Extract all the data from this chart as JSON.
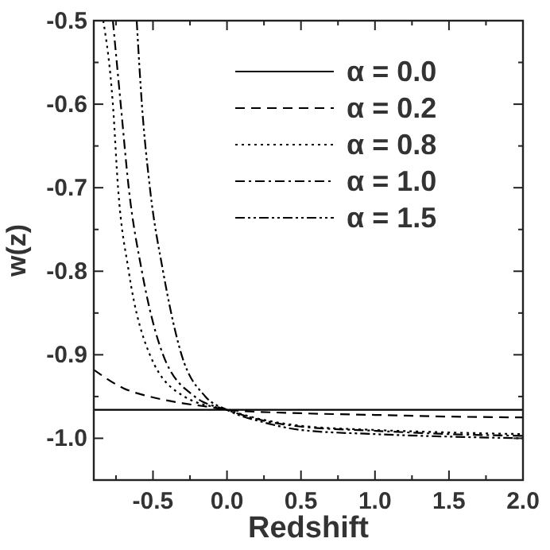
{
  "chart_data": {
    "type": "line",
    "xlabel": "Redshift",
    "ylabel": "w(z)",
    "xlim": [
      -0.9,
      2.0
    ],
    "ylim": [
      -1.05,
      -0.5
    ],
    "xticks": [
      {
        "value": -0.75,
        "label": null
      },
      -0.5,
      {
        "value": -0.25,
        "label": null
      },
      {
        "value": 0,
        "label": "0.0"
      },
      {
        "value": 0.25,
        "label": null
      },
      0.5,
      {
        "value": 0.75,
        "label": null
      },
      {
        "value": 1,
        "label": "1.0"
      },
      {
        "value": 1.25,
        "label": null
      },
      1.5,
      {
        "value": 1.75,
        "label": null
      },
      {
        "value": 2,
        "label": "2.0"
      }
    ],
    "yticks": [
      {
        "value": -1.05,
        "label": null
      },
      {
        "value": -1,
        "label": "-1.0"
      },
      {
        "value": -0.95,
        "label": null
      },
      -0.9,
      {
        "value": -0.85,
        "label": null
      },
      -0.8,
      {
        "value": -0.75,
        "label": null
      },
      -0.7,
      {
        "value": -0.65,
        "label": null
      },
      -0.6,
      {
        "value": -0.55,
        "label": null
      },
      -0.5
    ],
    "legend": "top right",
    "grid": false,
    "series": [
      {
        "name": "α = 0.0",
        "color": "#000000",
        "line_style": "solid",
        "x": [
          -0.9,
          0,
          2.0
        ],
        "values": [
          -0.966,
          -0.966,
          -0.966
        ]
      },
      {
        "name": "α = 0.2",
        "color": "#000000",
        "line_style": "dashed",
        "x": [
          -0.9,
          -0.7,
          -0.5,
          -0.3,
          -0.1,
          0,
          0.5,
          1.0,
          1.5,
          2.0
        ],
        "values": [
          -0.918,
          -0.94,
          -0.951,
          -0.958,
          -0.963,
          -0.966,
          -0.97,
          -0.972,
          -0.974,
          -0.975
        ]
      },
      {
        "name": "α = 0.8",
        "color": "#000000",
        "line_style": "dotted",
        "x": [
          -0.836,
          -0.771,
          -0.736,
          -0.664,
          -0.521,
          -0.289,
          0,
          0.25,
          0.5,
          1.0,
          1.5,
          2.0
        ],
        "values": [
          -0.5,
          -0.6,
          -0.7,
          -0.8,
          -0.9,
          -0.95,
          -0.966,
          -0.978,
          -0.985,
          -0.99,
          -0.993,
          -0.995
        ]
      },
      {
        "name": "α = 1.0",
        "color": "#000000",
        "line_style": "dashdot",
        "x": [
          -0.771,
          -0.718,
          -0.664,
          -0.575,
          -0.432,
          -0.218,
          0,
          0.25,
          0.5,
          1.0,
          1.5,
          2.0
        ],
        "values": [
          -0.5,
          -0.6,
          -0.7,
          -0.8,
          -0.9,
          -0.95,
          -0.966,
          -0.979,
          -0.986,
          -0.991,
          -0.995,
          -0.997
        ]
      },
      {
        "name": "α = 1.5",
        "color": "#000000",
        "line_style": "dashdotdot",
        "x": [
          -0.61,
          -0.575,
          -0.521,
          -0.432,
          -0.307,
          -0.146,
          0,
          0.25,
          0.5,
          1.0,
          1.5,
          2.0
        ],
        "values": [
          -0.5,
          -0.6,
          -0.7,
          -0.8,
          -0.9,
          -0.95,
          -0.966,
          -0.981,
          -0.99,
          -0.995,
          -0.998,
          -1.0
        ]
      }
    ]
  }
}
